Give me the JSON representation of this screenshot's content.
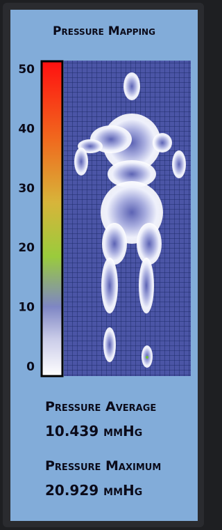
{
  "panel": {
    "title": "Pressure Mapping",
    "scale": {
      "lim": [
        0,
        50
      ],
      "ticks": [
        0,
        10,
        20,
        30,
        40,
        50
      ]
    },
    "stats": [
      {
        "label": "Pressure Average",
        "value": "10.439 mmHg"
      },
      {
        "label": "Pressure Maximum",
        "value": "20.929 mmHg"
      }
    ]
  }
}
